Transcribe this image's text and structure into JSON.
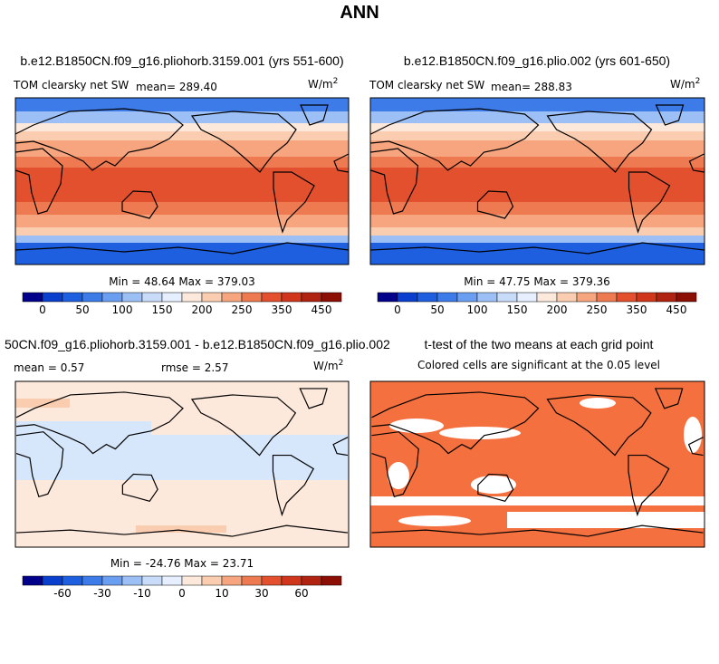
{
  "title": "ANN",
  "panels": [
    {
      "title": "b.e12.B1850CN.f09_g16.pliohorb.3159.001 (yrs 551-600)",
      "variable": "TOM clearsky net SW",
      "mean": "mean=  289.40",
      "units": "W/m",
      "units_sup": "2",
      "stats": "Min =  48.64 Max = 379.03"
    },
    {
      "title": "b.e12.B1850CN.f09_g16.plio.002 (yrs 601-650)",
      "variable": "TOM clearsky net SW",
      "mean": "mean=  288.83",
      "units": "W/m",
      "units_sup": "2",
      "stats": "Min =  47.75 Max = 379.36"
    },
    {
      "title": "50CN.f09_g16.pliohorb.3159.001 - b.e12.B1850CN.f09_g16.plio.002",
      "mean": "mean =    0.57",
      "rmse": "rmse =    2.57",
      "units": "W/m",
      "units_sup": "2",
      "stats": "Min = -24.76 Max =  23.71"
    },
    {
      "title": "t-test of the two means at each grid point",
      "subtitle": "Colored cells are significant at the 0.05 level"
    }
  ],
  "colorbars": [
    {
      "labels": [
        "0",
        "50",
        "100",
        "150",
        "200",
        "250",
        "350",
        "450"
      ],
      "colors": [
        "#00008b",
        "#0a3fcd",
        "#1e5fe0",
        "#3c7be8",
        "#6a9ef0",
        "#9cc0f5",
        "#c8dcfa",
        "#e6efff",
        "#fde9dc",
        "#fbcdb0",
        "#f6a57e",
        "#ee7a52",
        "#e3502e",
        "#d0361b",
        "#b02310",
        "#8b0f05"
      ]
    },
    {
      "labels": [
        "-60",
        "-30",
        "-10",
        "0",
        "10",
        "30",
        "60"
      ],
      "colors": [
        "#00008b",
        "#0a3fcd",
        "#1e5fe0",
        "#3c7be8",
        "#6a9ef0",
        "#9cc0f5",
        "#c8dcfa",
        "#e6efff",
        "#fde9dc",
        "#fbcdb0",
        "#f6a57e",
        "#ee7a52",
        "#e3502e",
        "#d0361b",
        "#b02310",
        "#8b0f05"
      ]
    }
  ]
}
